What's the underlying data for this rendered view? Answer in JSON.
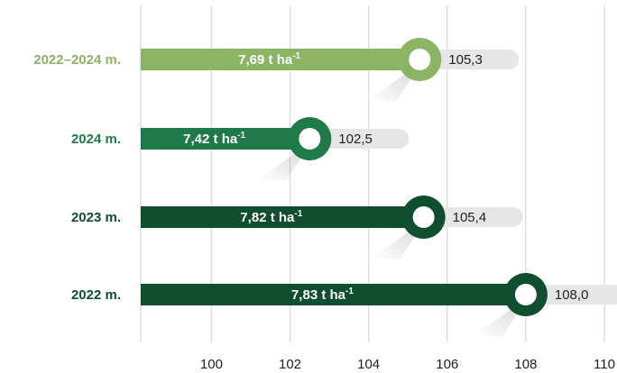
{
  "chart_data": {
    "type": "bar",
    "orientation": "horizontal",
    "categories": [
      "2022–2024 m.",
      "2024 m.",
      "2023 m.",
      "2022 m."
    ],
    "values": [
      105.3,
      102.5,
      105.4,
      108.0
    ],
    "value_labels": [
      "105,3",
      "102,5",
      "105,4",
      "108,0"
    ],
    "bar_labels": [
      {
        "main": "7,69 t ha",
        "sup": "-1"
      },
      {
        "main": "7,42 t ha",
        "sup": "-1"
      },
      {
        "main": "7,82 t ha",
        "sup": "-1"
      },
      {
        "main": "7,83 t ha",
        "sup": "-1"
      }
    ],
    "colors": [
      "#8bb464",
      "#1f7a4a",
      "#0f4f30",
      "#0f4f30"
    ],
    "label_colors": [
      "#8bb464",
      "#1f7a4a",
      "#0f4f30",
      "#0f4f30"
    ],
    "xticks": [
      "100",
      "102",
      "104",
      "106",
      "108",
      "110"
    ],
    "xtick_values": [
      100,
      102,
      104,
      106,
      108,
      110
    ],
    "xlim": [
      98.2,
      110
    ],
    "grid": true,
    "title": "",
    "xlabel": "",
    "ylabel": ""
  }
}
